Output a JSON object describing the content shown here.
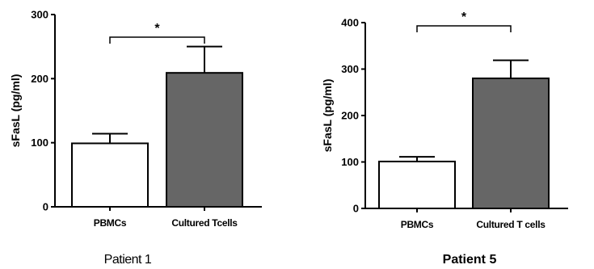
{
  "chart_data": [
    {
      "type": "bar",
      "title": "Patient 1",
      "xlabel": "",
      "ylabel": "sFasL (pg/ml)",
      "ylim": [
        0,
        300
      ],
      "yticks": [
        "0",
        "100",
        "200",
        "300"
      ],
      "categories": [
        "PBMCs",
        "Cultured Tcells"
      ],
      "values": [
        99,
        209
      ],
      "error_upper": [
        15,
        41
      ],
      "bar_colors": [
        "#ffffff",
        "#666666"
      ],
      "significance": {
        "pair": [
          0,
          1
        ],
        "label": "*"
      },
      "grid": false
    },
    {
      "type": "bar",
      "title": "Patient 5",
      "xlabel": "",
      "ylabel": "sFasL (pg/ml)",
      "ylim": [
        0,
        400
      ],
      "yticks": [
        "0",
        "100",
        "200",
        "300",
        "400"
      ],
      "categories": [
        "PBMCs",
        "Cultured T cells"
      ],
      "values": [
        101,
        280
      ],
      "error_upper": [
        10,
        39
      ],
      "bar_colors": [
        "#ffffff",
        "#666666"
      ],
      "significance": {
        "pair": [
          0,
          1
        ],
        "label": "*"
      },
      "grid": false
    }
  ]
}
